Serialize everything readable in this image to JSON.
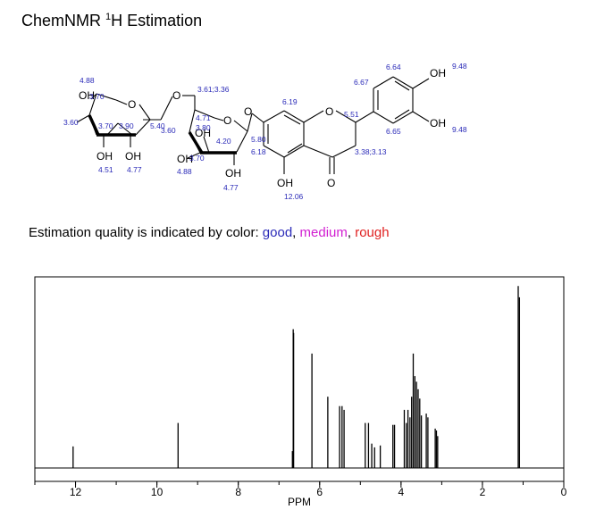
{
  "header": {
    "title_prefix": "ChemNMR ",
    "title_sup": "1",
    "title_suffix": "H Estimation"
  },
  "structure": {
    "atoms": {
      "oh_ring1_top": "OH",
      "o_ring1": "O",
      "o_link": "O",
      "o_ring2": "O",
      "o_aryl": "O",
      "o_chromane": "O",
      "oh_ring1_b1": "OH",
      "oh_ring1_b2": "OH",
      "oh_ring2_mid": "OH",
      "oh_ring2_b": "OH",
      "oh_5": "OH",
      "o_keto": "O",
      "oh_3p": "OH",
      "oh_4p": "OH"
    },
    "shifts": {
      "s_488_top": "4.88",
      "s_370_top": "3.70",
      "s_360_left": "3.60",
      "s_370_mid": "3.70",
      "s_390": "3.90",
      "s_540": "5.40",
      "s_360_mid": "3.60",
      "s_451": "4.51",
      "s_477_left": "4.77",
      "s_361_336": "3.61;3.36",
      "s_471": "4.71",
      "s_380": "3.80",
      "s_420": "4.20",
      "s_370_b": "3.70",
      "s_488_b": "4.88",
      "s_477_b": "4.77",
      "s_580": "5.80",
      "s_618": "6.18",
      "s_619": "6.19",
      "s_1206": "12.06",
      "s_551": "5.51",
      "s_338_313": "3.38;3.13",
      "s_667": "6.67",
      "s_664": "6.64",
      "s_665": "6.65",
      "s_948_top": "9.48",
      "s_948_b": "9.48"
    }
  },
  "quality_legend": {
    "prefix": "Estimation quality is indicated by color: ",
    "good": "good",
    "sep1": ", ",
    "medium": "medium",
    "sep2": ", ",
    "rough": "rough",
    "colors": {
      "good": "#2a2ab8",
      "medium": "#d11ed1",
      "rough": "#e02020"
    }
  },
  "chart_data": {
    "type": "line",
    "title": "",
    "xlabel": "PPM",
    "ylabel": "",
    "xlim": [
      13,
      0
    ],
    "x_ticks": [
      12,
      10,
      8,
      6,
      4,
      2,
      0
    ],
    "x_tick_labels": [
      "12",
      "10",
      "8",
      "6",
      "4",
      "2",
      "0"
    ],
    "x_minor_step": 1,
    "grid": false,
    "peaks": [
      {
        "ppm": 12.06,
        "height": 0.115
      },
      {
        "ppm": 9.48,
        "height": 0.24
      },
      {
        "ppm": 6.67,
        "height": 0.09
      },
      {
        "ppm": 6.65,
        "height": 0.74
      },
      {
        "ppm": 6.64,
        "height": 0.72
      },
      {
        "ppm": 6.19,
        "height": 0.61
      },
      {
        "ppm": 5.8,
        "height": 0.38
      },
      {
        "ppm": 5.51,
        "height": 0.33
      },
      {
        "ppm": 5.45,
        "height": 0.33
      },
      {
        "ppm": 5.4,
        "height": 0.31
      },
      {
        "ppm": 4.88,
        "height": 0.24
      },
      {
        "ppm": 4.8,
        "height": 0.24
      },
      {
        "ppm": 4.72,
        "height": 0.13
      },
      {
        "ppm": 4.65,
        "height": 0.11
      },
      {
        "ppm": 4.51,
        "height": 0.12
      },
      {
        "ppm": 4.2,
        "height": 0.23
      },
      {
        "ppm": 4.16,
        "height": 0.23
      },
      {
        "ppm": 3.92,
        "height": 0.31
      },
      {
        "ppm": 3.87,
        "height": 0.24
      },
      {
        "ppm": 3.83,
        "height": 0.31
      },
      {
        "ppm": 3.78,
        "height": 0.27
      },
      {
        "ppm": 3.74,
        "height": 0.38
      },
      {
        "ppm": 3.7,
        "height": 0.61
      },
      {
        "ppm": 3.66,
        "height": 0.49
      },
      {
        "ppm": 3.62,
        "height": 0.46
      },
      {
        "ppm": 3.58,
        "height": 0.42
      },
      {
        "ppm": 3.54,
        "height": 0.37
      },
      {
        "ppm": 3.5,
        "height": 0.28
      },
      {
        "ppm": 3.38,
        "height": 0.29
      },
      {
        "ppm": 3.34,
        "height": 0.27
      },
      {
        "ppm": 3.16,
        "height": 0.21
      },
      {
        "ppm": 3.13,
        "height": 0.2
      },
      {
        "ppm": 3.1,
        "height": 0.17
      },
      {
        "ppm": 1.12,
        "height": 0.97
      },
      {
        "ppm": 1.09,
        "height": 0.91
      }
    ]
  }
}
